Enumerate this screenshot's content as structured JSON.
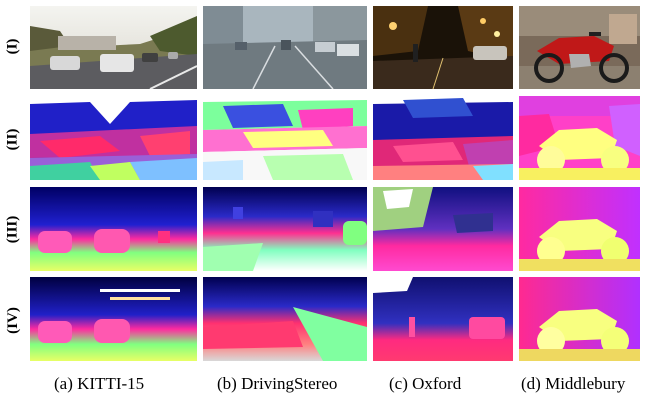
{
  "rows": [
    "(I)",
    "(II)",
    "(III)",
    "(IV)"
  ],
  "captions": [
    "(a) KITTI-15",
    "(b) DrivingStereo",
    "(c) Oxford",
    "(d) Middlebury"
  ],
  "colors": {
    "error_low": "#2020c8",
    "error_high": "#ff2a6a",
    "disparity_near": "#e8ff66",
    "disparity_far": "#000064"
  }
}
